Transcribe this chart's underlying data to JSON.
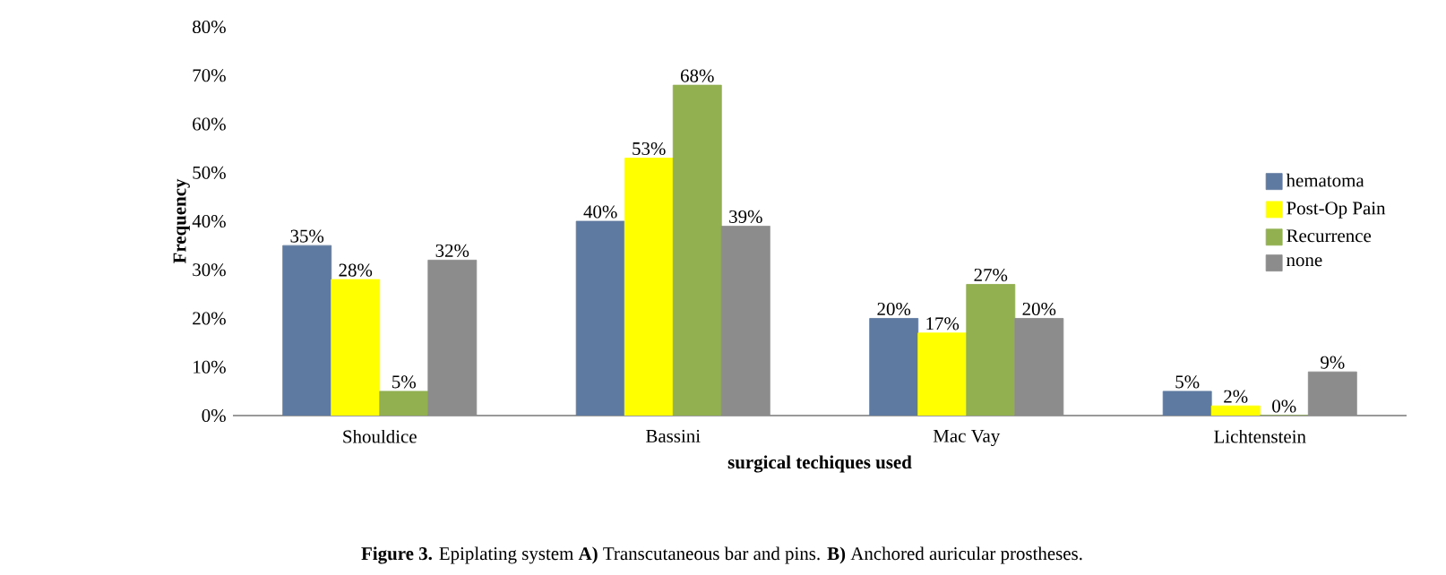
{
  "chart_data": {
    "type": "bar",
    "ylabel": "Frequency",
    "xlabel": "surgical techiques used",
    "categories": [
      "Shouldice",
      "Bassini",
      "Mac Vay",
      "Lichtenstein"
    ],
    "series": [
      {
        "name": "hematoma",
        "color": "#5f7aa0",
        "values": [
          35,
          40,
          20,
          5
        ],
        "value_labels": [
          "35%",
          "40%",
          "20%",
          "5%"
        ]
      },
      {
        "name": "Post-Op Pain",
        "color": "#ffff00",
        "values": [
          28,
          53,
          17,
          2
        ],
        "value_labels": [
          "28%",
          "53%",
          "17%",
          "2%"
        ]
      },
      {
        "name": "Recurrence",
        "color": "#92b050",
        "values": [
          5,
          68,
          27,
          0
        ],
        "value_labels": [
          "5%",
          "68%",
          "27%",
          "0%"
        ]
      },
      {
        "name": "none",
        "color": "#8c8c8c",
        "values": [
          32,
          39,
          20,
          9
        ],
        "value_labels": [
          "32%",
          "39%",
          "20%",
          "9%"
        ]
      }
    ],
    "ylim": [
      0,
      80
    ],
    "yticks": [
      {
        "value": 0,
        "label": "0%"
      },
      {
        "value": 10,
        "label": "10%"
      },
      {
        "value": 20,
        "label": "20%"
      },
      {
        "value": 30,
        "label": "30%"
      },
      {
        "value": 40,
        "label": "40%"
      },
      {
        "value": 50,
        "label": "50%"
      },
      {
        "value": 60,
        "label": "60%"
      },
      {
        "value": 70,
        "label": "70%"
      },
      {
        "value": 80,
        "label": "80%"
      }
    ],
    "legend": "right",
    "grid": false,
    "annotations": [
      "**Figure 3.** Epiplating system **A)** Transcutaneous bar and pins. **B)** Anchored auricular prostheses."
    ]
  }
}
